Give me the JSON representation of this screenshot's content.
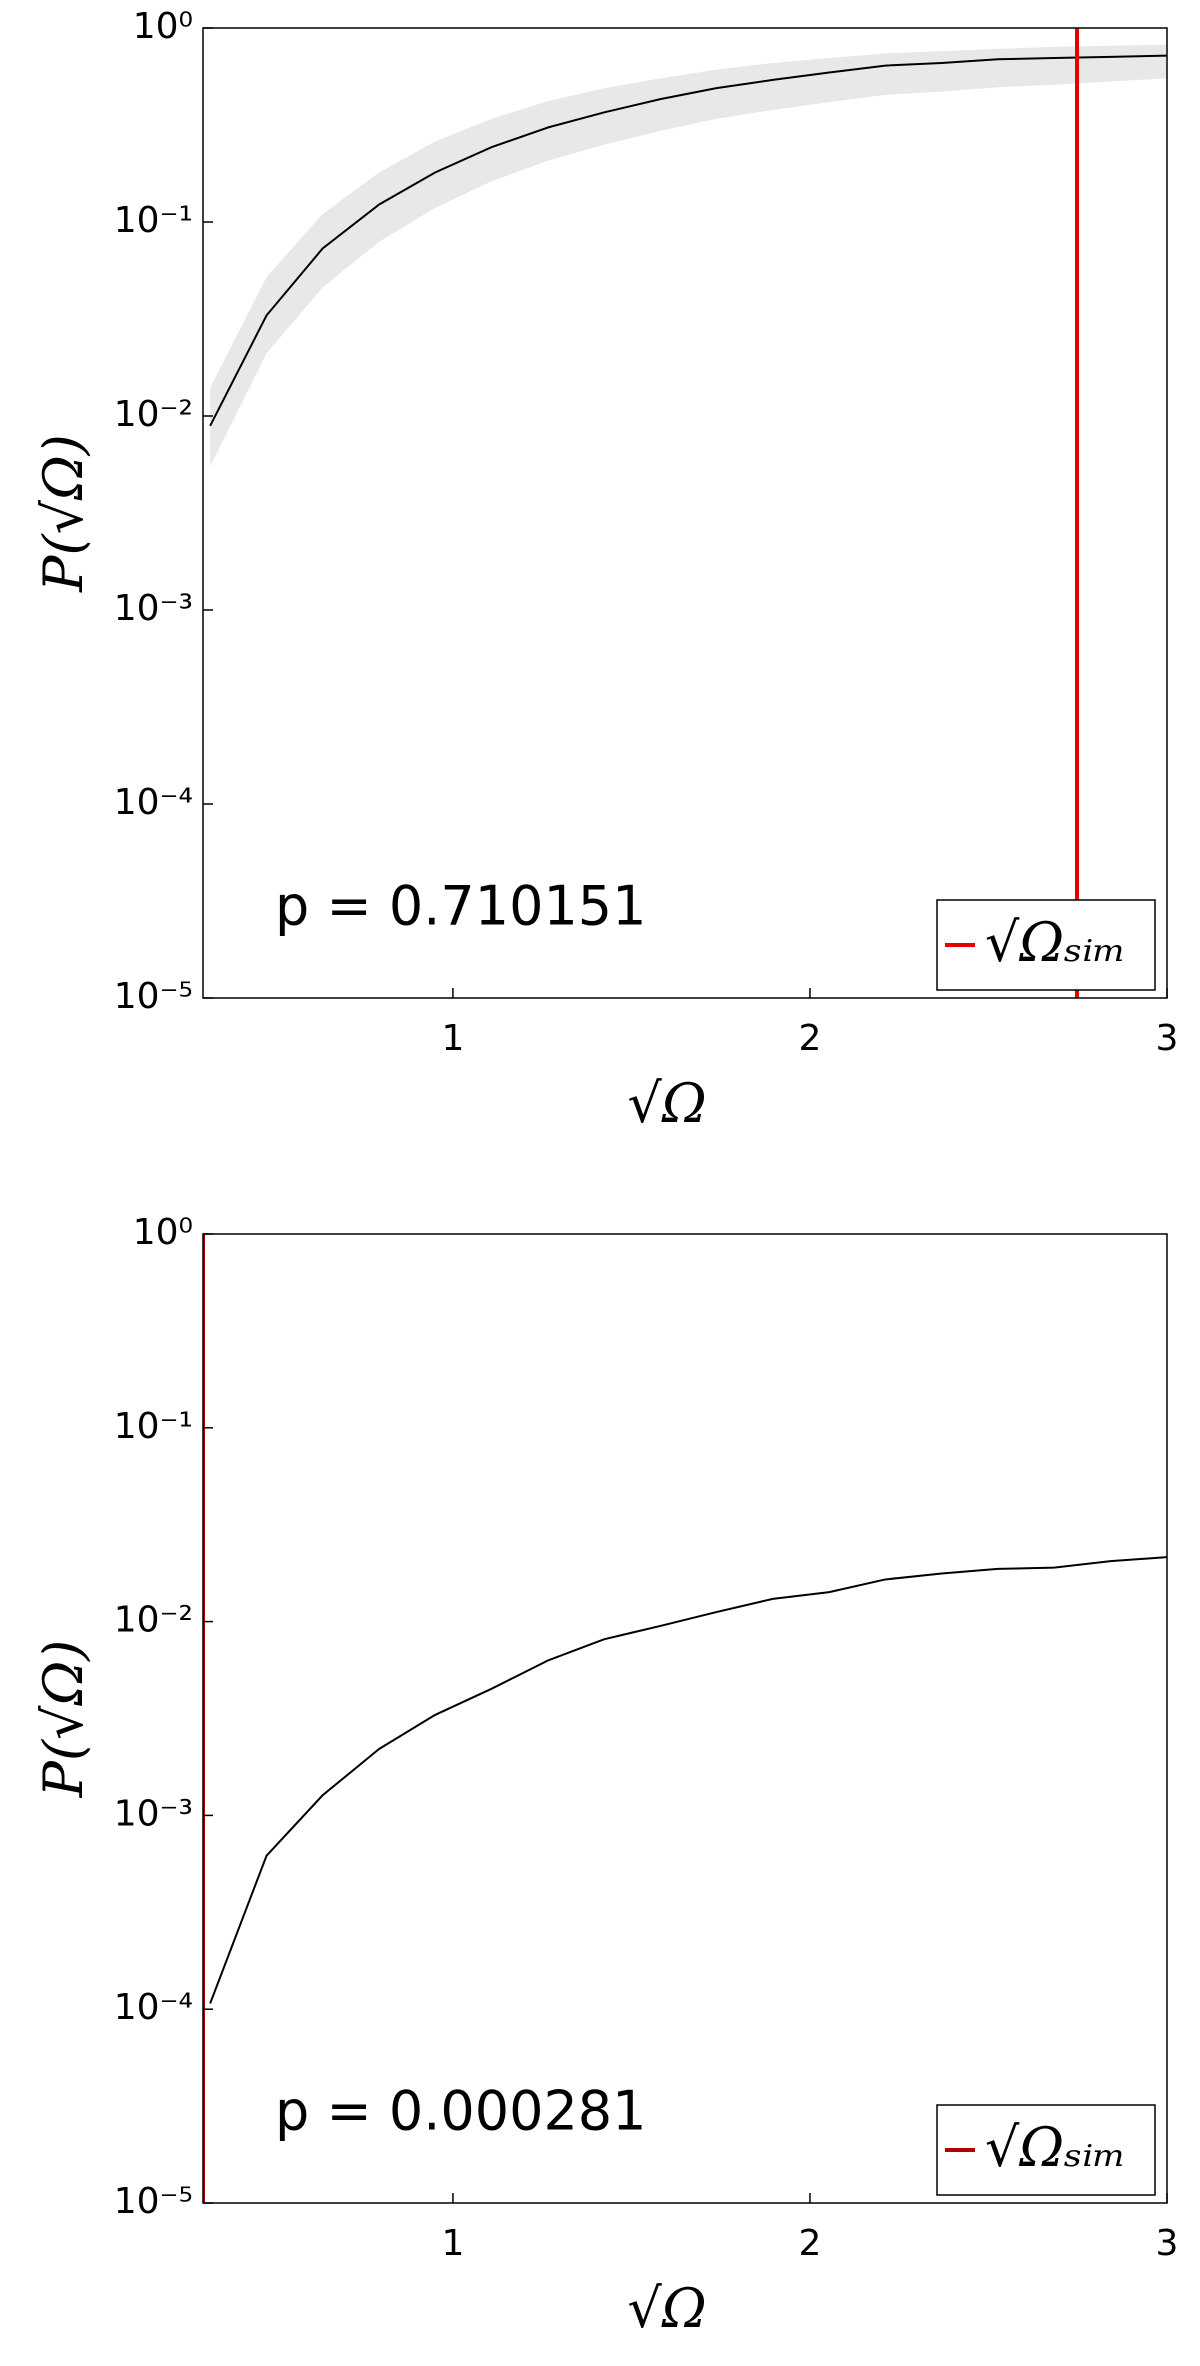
{
  "chart_data": [
    {
      "type": "line",
      "yscale": "log",
      "x_label": "√Ω",
      "y_label": "P(√Ω)",
      "annotation": "p = 0.710151",
      "x": [
        0.32,
        0.478,
        0.635,
        0.793,
        0.95,
        1.108,
        1.266,
        1.423,
        1.581,
        1.738,
        1.896,
        2.054,
        2.211,
        2.369,
        2.526,
        2.684,
        2.842,
        3.0
      ],
      "series": [
        {
          "color": "#000000",
          "values": [
            0.0089,
            0.033,
            0.073,
            0.123,
            0.18,
            0.243,
            0.307,
            0.367,
            0.43,
            0.49,
            0.54,
            0.59,
            0.64,
            0.66,
            0.69,
            0.7,
            0.71,
            0.72
          ]
        }
      ],
      "band": {
        "color": "#e8e8e8",
        "lower": [
          0.0055,
          0.021,
          0.046,
          0.079,
          0.118,
          0.162,
          0.207,
          0.25,
          0.295,
          0.34,
          0.378,
          0.415,
          0.452,
          0.47,
          0.495,
          0.51,
          0.53,
          0.55
        ],
        "upper": [
          0.014,
          0.052,
          0.11,
          0.18,
          0.26,
          0.34,
          0.42,
          0.49,
          0.55,
          0.61,
          0.66,
          0.7,
          0.74,
          0.76,
          0.78,
          0.8,
          0.81,
          0.82
        ]
      },
      "vlines": [
        {
          "name": "√Ωₛᵢₘ",
          "x": 2.748,
          "color": "#e00000"
        }
      ],
      "legend": "lower right",
      "xlim": [
        0.3,
        3
      ],
      "xticks": [
        1,
        2,
        3
      ],
      "ylim": [
        1e-05,
        1
      ],
      "yticks": [
        {
          "value": 1e-05,
          "label": "10⁻⁵"
        },
        {
          "value": 0.0001,
          "label": "10⁻⁴"
        },
        {
          "value": 0.001,
          "label": "10⁻³"
        },
        {
          "value": 0.01,
          "label": "10⁻²"
        },
        {
          "value": 0.1,
          "label": "10⁻¹"
        },
        {
          "value": 1,
          "label": "10⁰"
        }
      ]
    },
    {
      "type": "line",
      "yscale": "log",
      "x_label": "√Ω",
      "y_label": "P(√Ω)",
      "annotation": "p = 0.000281",
      "x": [
        0.32,
        0.478,
        0.635,
        0.793,
        0.95,
        1.108,
        1.266,
        1.423,
        1.581,
        1.738,
        1.896,
        2.054,
        2.211,
        2.369,
        2.526,
        2.684,
        2.842,
        3.0
      ],
      "series": [
        {
          "color": "#000000",
          "values": [
            0.000107,
            0.00062,
            0.00127,
            0.0022,
            0.0033,
            0.0045,
            0.0063,
            0.0081,
            0.0095,
            0.0112,
            0.0131,
            0.0142,
            0.0165,
            0.0177,
            0.0187,
            0.019,
            0.0205,
            0.0215
          ]
        }
      ],
      "vlines": [
        {
          "name": "√Ωₛᵢₘ",
          "x": 0.3,
          "color": "#b00000"
        }
      ],
      "legend": "lower right",
      "xlim": [
        0.3,
        3
      ],
      "xticks": [
        1,
        2,
        3
      ],
      "ylim": [
        1e-05,
        1
      ],
      "yticks": [
        {
          "value": 1e-05,
          "label": "10⁻⁵"
        },
        {
          "value": 0.0001,
          "label": "10⁻⁴"
        },
        {
          "value": 0.001,
          "label": "10⁻³"
        },
        {
          "value": 0.01,
          "label": "10⁻²"
        },
        {
          "value": 0.1,
          "label": "10⁻¹"
        },
        {
          "value": 1,
          "label": "10⁰"
        }
      ]
    }
  ]
}
